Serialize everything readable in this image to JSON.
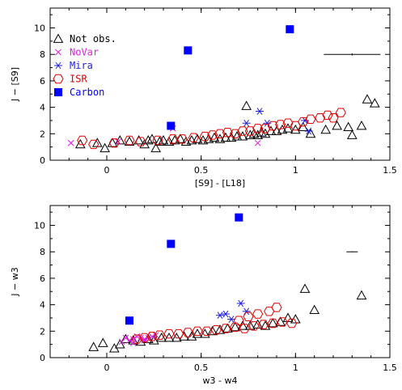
{
  "chart_data": [
    {
      "type": "scatter",
      "title": "",
      "xlabel": "[S9] - [L18]",
      "ylabel": "J − [S9]",
      "xlim": [
        -0.3,
        1.5
      ],
      "ylim": [
        0,
        11.5
      ],
      "xticks": [
        "0",
        "0.5",
        "1",
        "1.5"
      ],
      "yticks": [
        "0",
        "2",
        "4",
        "6",
        "8",
        "10"
      ],
      "legend_position": "top-left",
      "error_bar": {
        "x": 1.3,
        "y": 8.0,
        "x_err": 0.15,
        "y_err": 0.08
      },
      "series": [
        {
          "name": "Not obs.",
          "marker": "open-triangle",
          "color": "#000000",
          "points": [
            [
              -0.14,
              1.2
            ],
            [
              -0.05,
              1.3
            ],
            [
              -0.01,
              0.9
            ],
            [
              0.03,
              1.3
            ],
            [
              0.07,
              1.5
            ],
            [
              0.12,
              1.4
            ],
            [
              0.17,
              1.5
            ],
            [
              0.2,
              1.2
            ],
            [
              0.22,
              1.5
            ],
            [
              0.24,
              1.6
            ],
            [
              0.26,
              0.9
            ],
            [
              0.28,
              1.4
            ],
            [
              0.3,
              1.5
            ],
            [
              0.33,
              1.4
            ],
            [
              0.36,
              1.5
            ],
            [
              0.39,
              1.6
            ],
            [
              0.42,
              1.4
            ],
            [
              0.45,
              1.5
            ],
            [
              0.48,
              1.6
            ],
            [
              0.51,
              1.5
            ],
            [
              0.54,
              1.6
            ],
            [
              0.57,
              1.7
            ],
            [
              0.6,
              1.6
            ],
            [
              0.63,
              1.7
            ],
            [
              0.66,
              1.7
            ],
            [
              0.69,
              1.8
            ],
            [
              0.72,
              1.8
            ],
            [
              0.74,
              4.1
            ],
            [
              0.76,
              1.9
            ],
            [
              0.78,
              2.0
            ],
            [
              0.8,
              1.9
            ],
            [
              0.82,
              2.1
            ],
            [
              0.84,
              2.0
            ],
            [
              0.87,
              2.2
            ],
            [
              0.9,
              2.2
            ],
            [
              0.93,
              2.3
            ],
            [
              0.96,
              2.4
            ],
            [
              1.0,
              2.3
            ],
            [
              1.04,
              2.5
            ],
            [
              1.08,
              2.0
            ],
            [
              1.16,
              2.3
            ],
            [
              1.22,
              2.6
            ],
            [
              1.28,
              2.5
            ],
            [
              1.3,
              1.9
            ],
            [
              1.35,
              2.6
            ],
            [
              1.38,
              4.6
            ],
            [
              1.42,
              4.3
            ]
          ]
        },
        {
          "name": "NoVar",
          "marker": "x",
          "color": "#e020e0",
          "points": [
            [
              -0.19,
              1.3
            ],
            [
              0.06,
              1.4
            ],
            [
              0.35,
              2.4
            ],
            [
              0.8,
              1.3
            ]
          ]
        },
        {
          "name": "Mira",
          "marker": "asterisk",
          "color": "#2020e0",
          "points": [
            [
              0.34,
              2.6
            ],
            [
              0.74,
              2.8
            ],
            [
              0.81,
              3.7
            ],
            [
              0.85,
              2.8
            ],
            [
              1.05,
              3.0
            ],
            [
              1.07,
              2.2
            ]
          ]
        },
        {
          "name": "ISR",
          "marker": "open-hexagon",
          "color": "#e00000",
          "points": [
            [
              -0.13,
              1.5
            ],
            [
              -0.07,
              1.2
            ],
            [
              0.04,
              1.3
            ],
            [
              0.12,
              1.5
            ],
            [
              0.18,
              1.4
            ],
            [
              0.27,
              1.5
            ],
            [
              0.35,
              1.6
            ],
            [
              0.4,
              1.6
            ],
            [
              0.46,
              1.7
            ],
            [
              0.52,
              1.8
            ],
            [
              0.56,
              1.9
            ],
            [
              0.6,
              2.0
            ],
            [
              0.64,
              2.1
            ],
            [
              0.68,
              2.0
            ],
            [
              0.72,
              2.2
            ],
            [
              0.76,
              2.2
            ],
            [
              0.8,
              2.4
            ],
            [
              0.84,
              2.4
            ],
            [
              0.88,
              2.6
            ],
            [
              0.92,
              2.7
            ],
            [
              0.96,
              2.8
            ],
            [
              1.0,
              2.6
            ],
            [
              1.04,
              2.9
            ],
            [
              1.08,
              3.1
            ],
            [
              1.13,
              3.2
            ],
            [
              1.17,
              3.4
            ],
            [
              1.2,
              3.2
            ],
            [
              1.24,
              3.6
            ]
          ]
        },
        {
          "name": "Carbon",
          "marker": "filled-square",
          "color": "#0000ff",
          "points": [
            [
              0.34,
              2.6
            ],
            [
              0.43,
              8.3
            ],
            [
              0.97,
              9.9
            ]
          ]
        }
      ]
    },
    {
      "type": "scatter",
      "title": "",
      "xlabel": "w3 - w4",
      "ylabel": "J − w3",
      "xlim": [
        -0.3,
        1.5
      ],
      "ylim": [
        0,
        11.5
      ],
      "xticks": [
        "0",
        "0.5",
        "1",
        "1.5"
      ],
      "yticks": [
        "0",
        "2",
        "4",
        "6",
        "8",
        "10"
      ],
      "error_bar": {
        "x": 1.3,
        "y": 8.0,
        "x_err": 0.03,
        "y_err": 0.03
      },
      "series": [
        {
          "name": "Not obs.",
          "marker": "open-triangle",
          "color": "#000000",
          "points": [
            [
              -0.07,
              0.8
            ],
            [
              -0.02,
              1.1
            ],
            [
              0.04,
              0.7
            ],
            [
              0.07,
              1.0
            ],
            [
              0.1,
              1.4
            ],
            [
              0.14,
              1.3
            ],
            [
              0.18,
              1.2
            ],
            [
              0.22,
              1.4
            ],
            [
              0.25,
              1.3
            ],
            [
              0.29,
              1.5
            ],
            [
              0.33,
              1.5
            ],
            [
              0.37,
              1.5
            ],
            [
              0.41,
              1.6
            ],
            [
              0.45,
              1.6
            ],
            [
              0.48,
              1.8
            ],
            [
              0.52,
              1.8
            ],
            [
              0.56,
              2.0
            ],
            [
              0.6,
              2.1
            ],
            [
              0.64,
              2.2
            ],
            [
              0.68,
              2.3
            ],
            [
              0.72,
              2.4
            ],
            [
              0.76,
              2.4
            ],
            [
              0.8,
              2.5
            ],
            [
              0.84,
              2.4
            ],
            [
              0.88,
              2.6
            ],
            [
              0.92,
              2.7
            ],
            [
              0.96,
              3.0
            ],
            [
              1.0,
              2.9
            ],
            [
              1.05,
              5.2
            ],
            [
              1.1,
              3.6
            ],
            [
              1.35,
              4.7
            ]
          ]
        },
        {
          "name": "NoVar",
          "marker": "x",
          "color": "#e020e0",
          "points": [
            [
              0.08,
              1.2
            ],
            [
              0.1,
              1.5
            ],
            [
              0.12,
              1.3
            ],
            [
              0.14,
              1.4
            ],
            [
              0.16,
              1.6
            ],
            [
              0.18,
              1.5
            ],
            [
              0.2,
              1.4
            ],
            [
              0.22,
              1.5
            ],
            [
              0.24,
              1.6
            ],
            [
              0.26,
              1.7
            ],
            [
              0.14,
              1.1
            ],
            [
              0.2,
              1.3
            ]
          ]
        },
        {
          "name": "Mira",
          "marker": "asterisk",
          "color": "#2020e0",
          "points": [
            [
              0.6,
              3.2
            ],
            [
              0.63,
              3.3
            ],
            [
              0.71,
              4.1
            ],
            [
              0.74,
              3.5
            ],
            [
              0.66,
              2.9
            ]
          ]
        },
        {
          "name": "ISR",
          "marker": "open-hexagon",
          "color": "#e00000",
          "points": [
            [
              0.16,
              1.4
            ],
            [
              0.2,
              1.5
            ],
            [
              0.24,
              1.6
            ],
            [
              0.28,
              1.7
            ],
            [
              0.33,
              1.8
            ],
            [
              0.38,
              1.8
            ],
            [
              0.43,
              1.9
            ],
            [
              0.48,
              2.0
            ],
            [
              0.53,
              2.0
            ],
            [
              0.58,
              2.1
            ],
            [
              0.63,
              2.2
            ],
            [
              0.68,
              2.3
            ],
            [
              0.73,
              2.2
            ],
            [
              0.78,
              2.4
            ],
            [
              0.83,
              2.5
            ],
            [
              0.88,
              2.6
            ],
            [
              0.93,
              2.7
            ],
            [
              0.98,
              2.6
            ],
            [
              0.7,
              2.8
            ],
            [
              0.75,
              3.1
            ],
            [
              0.8,
              3.3
            ],
            [
              0.86,
              3.5
            ],
            [
              0.9,
              3.8
            ]
          ]
        },
        {
          "name": "Carbon",
          "marker": "filled-square",
          "color": "#0000ff",
          "points": [
            [
              0.12,
              2.8
            ],
            [
              0.34,
              8.6
            ],
            [
              0.7,
              10.6
            ]
          ]
        }
      ]
    }
  ]
}
